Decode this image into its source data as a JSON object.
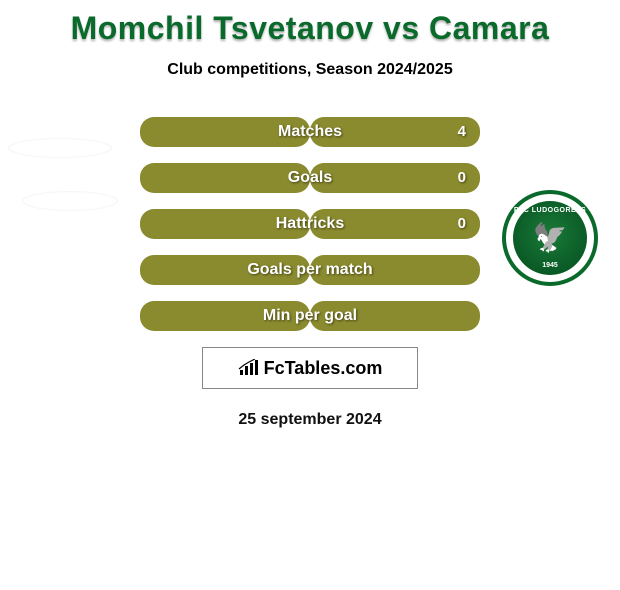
{
  "title": {
    "text": "Momchil Tsvetanov vs Camara",
    "color": "#0a6a2c",
    "fontsize": 32
  },
  "subtitle": {
    "text": "Club competitions, Season 2024/2025",
    "fontsize": 16
  },
  "stats": {
    "bar_color": "#8a8a2e",
    "bar_bg_color": "#ffffff",
    "full_width": 170,
    "rows": [
      {
        "label": "Matches",
        "left": "",
        "right": "4",
        "left_fill": 170,
        "right_fill": 170
      },
      {
        "label": "Goals",
        "left": "",
        "right": "0",
        "left_fill": 170,
        "right_fill": 170
      },
      {
        "label": "Hattricks",
        "left": "",
        "right": "0",
        "left_fill": 170,
        "right_fill": 170
      },
      {
        "label": "Goals per match",
        "left": "",
        "right": "",
        "left_fill": 170,
        "right_fill": 170
      },
      {
        "label": "Min per goal",
        "left": "",
        "right": "",
        "left_fill": 170,
        "right_fill": 170
      }
    ]
  },
  "crest": {
    "club": "LUDOGORETS",
    "prefix": "PFC",
    "year": "1945"
  },
  "brand": {
    "text": "FcTables.com"
  },
  "date": {
    "text": "25 september 2024"
  },
  "colors": {
    "background": "#ffffff",
    "accent_green": "#0a6a2c"
  }
}
